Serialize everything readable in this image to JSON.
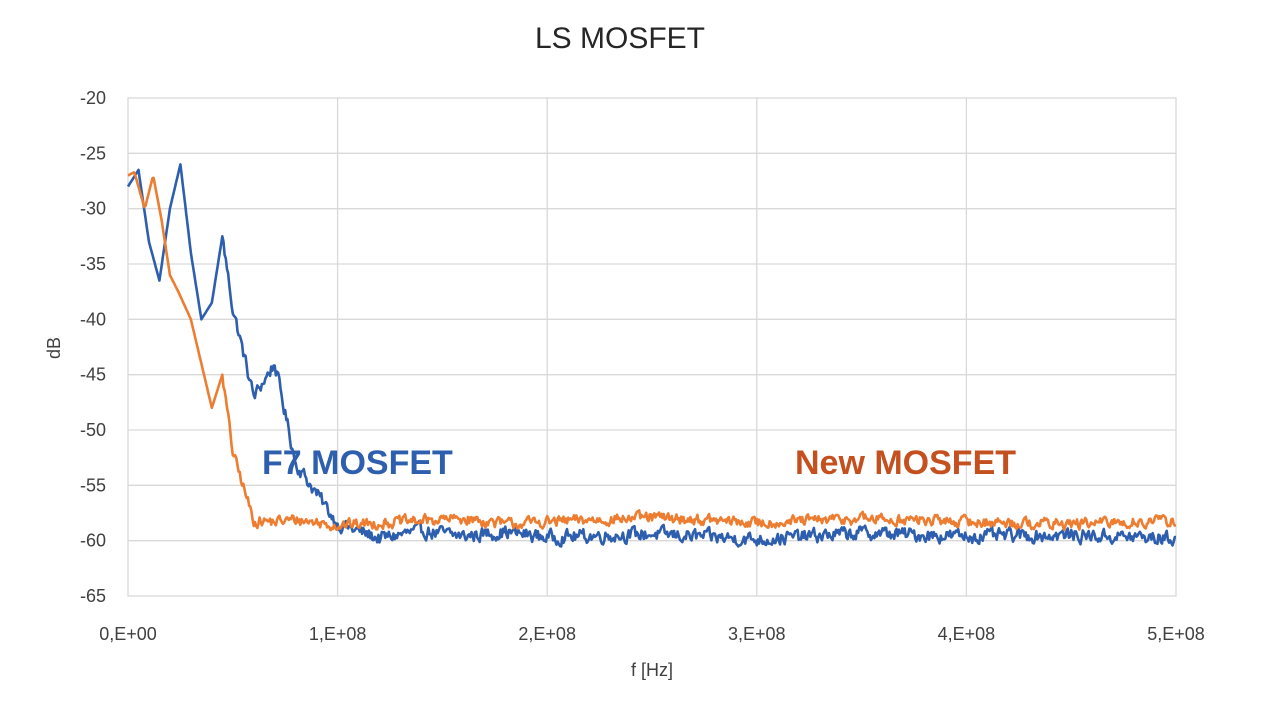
{
  "chart_data": {
    "type": "line",
    "title": "LS MOSFET",
    "xlabel": "f [Hz]",
    "ylabel": "dB",
    "xlim": [
      0,
      500000000
    ],
    "ylim": [
      -65,
      -20
    ],
    "x_tick_labels": [
      "0,E+00",
      "1,E+08",
      "2,E+08",
      "3,E+08",
      "4,E+08",
      "5,E+08"
    ],
    "y_tick_labels": [
      "-20",
      "-25",
      "-30",
      "-35",
      "-40",
      "-45",
      "-50",
      "-55",
      "-60",
      "-65"
    ],
    "grid": true,
    "x_unit_step": 10000000,
    "annotations": [
      {
        "text": "F7 MOSFET",
        "series": "F7 MOSFET",
        "color": "#2e5fae"
      },
      {
        "text": "New MOSFET",
        "series": "New MOSFET",
        "color": "#c5501f"
      }
    ],
    "series": [
      {
        "name": "F7 MOSFET",
        "color": "#2e5fae",
        "x_units": [
          0,
          0.5,
          1,
          1.5,
          2,
          2.5,
          3,
          3.5,
          4,
          4.5,
          5,
          6,
          7,
          8,
          10,
          12,
          14,
          16,
          18,
          20,
          25,
          30,
          35,
          40,
          45,
          50
        ],
        "values": [
          -28,
          -26.5,
          -33,
          -36.5,
          -30,
          -26,
          -34,
          -40,
          -38.5,
          -32.5,
          -39,
          -47,
          -44,
          -53,
          -58.5,
          -59.8,
          -59.1,
          -59.6,
          -59.2,
          -59.7,
          -59.4,
          -59.9,
          -59.3,
          -59.6,
          -59.5,
          -59.8
        ],
        "noise": 1.0
      },
      {
        "name": "New MOSFET",
        "color": "#ed7d31",
        "x_units": [
          0,
          0.3,
          0.8,
          1.2,
          1.6,
          2,
          2.4,
          3,
          3.5,
          4,
          4.5,
          5,
          6,
          7,
          8,
          10,
          12,
          14,
          16,
          18,
          20,
          25,
          30,
          35,
          40,
          45,
          50
        ],
        "values": [
          -27,
          -26.7,
          -30,
          -27,
          -31,
          -36,
          -37.5,
          -40,
          -44,
          -48,
          -45,
          -52,
          -58.2,
          -58.3,
          -58.1,
          -58.6,
          -58.4,
          -58.2,
          -58.0,
          -58.5,
          -58.3,
          -57.9,
          -58.4,
          -58.0,
          -58.3,
          -58.5,
          -58.2
        ],
        "noise": 0.8
      }
    ]
  }
}
